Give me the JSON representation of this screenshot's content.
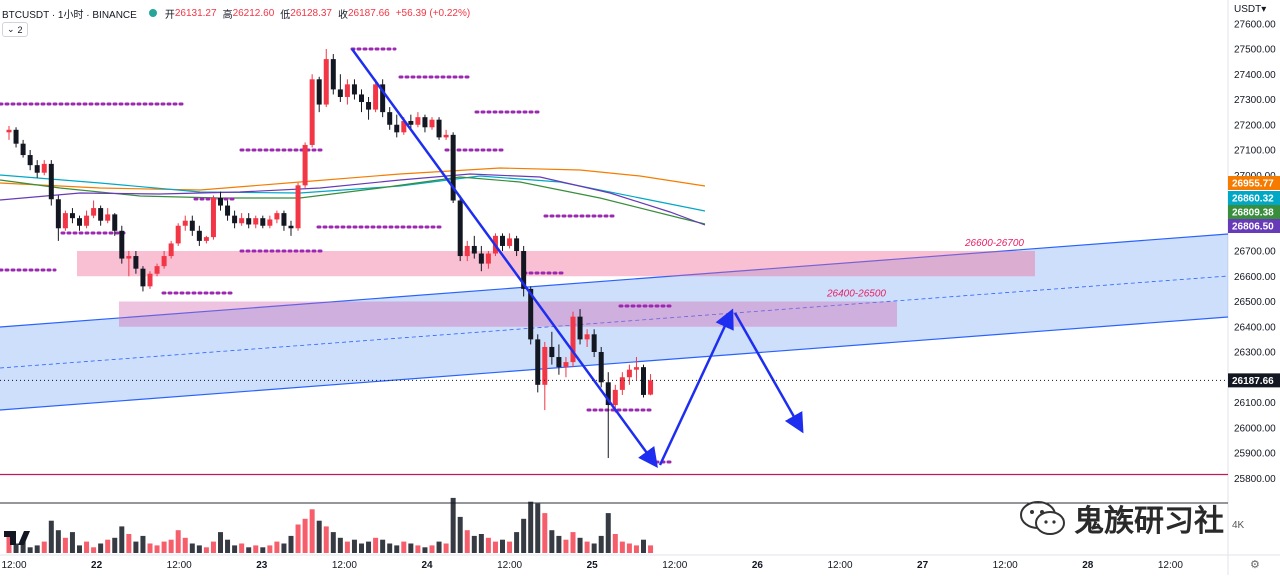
{
  "legend": {
    "symbol": "BTCUSDT · 1小时 · BINANCE",
    "open_label": "开",
    "open": "26131.27",
    "high_label": "高",
    "high": "26212.60",
    "low_label": "低",
    "low": "26128.37",
    "close_label": "收",
    "close": "26187.66",
    "change": "+56.39 (+0.22%)",
    "indicator_count": "2"
  },
  "currency": "USDT",
  "watermark": "鬼族研习社",
  "volume_unit": "4K",
  "colors": {
    "up": "#f23645",
    "down": "#131722",
    "accent_blue": "#1e2ef0",
    "zone_pink": "#f8a5c2",
    "level_purple": "#9c27b0"
  },
  "chart_data": {
    "type": "candlestick",
    "price_axis": {
      "ticks": [
        "27600.00",
        "27500.00",
        "27400.00",
        "27300.00",
        "27200.00",
        "27100.00",
        "27000.00",
        "26900.00",
        "26800.00",
        "26700.00",
        "26600.00",
        "26500.00",
        "26400.00",
        "26300.00",
        "26200.00",
        "26100.00",
        "26000.00",
        "25900.00",
        "25800.00"
      ],
      "range": [
        25780,
        27620
      ]
    },
    "time_axis": {
      "ticks": [
        "12:00",
        "22",
        "12:00",
        "23",
        "12:00",
        "24",
        "12:00",
        "25",
        "12:00",
        "26",
        "12:00",
        "27",
        "12:00",
        "28",
        "12:00"
      ]
    },
    "price_labels": [
      {
        "value": "26955.77",
        "color": "#f57c00"
      },
      {
        "value": "26860.32",
        "color": "#00a8c6"
      },
      {
        "value": "26809.38",
        "color": "#388e3c"
      },
      {
        "value": "26806.50",
        "color": "#673ab7"
      },
      {
        "value": "26187.66",
        "color": "#131722"
      }
    ],
    "last_price": 26187.66,
    "zones": [
      {
        "label": "26600-26700",
        "low": 26600,
        "high": 26700
      },
      {
        "label": "26400-26500",
        "low": 26400,
        "high": 26500
      }
    ],
    "support_line": 25815,
    "candles": [
      [
        27170,
        27195,
        27140,
        27180
      ],
      [
        27180,
        27190,
        27110,
        27125
      ],
      [
        27125,
        27140,
        27070,
        27080
      ],
      [
        27080,
        27100,
        27020,
        27040
      ],
      [
        27040,
        27060,
        26990,
        27010
      ],
      [
        27010,
        27060,
        27000,
        27045
      ],
      [
        27045,
        27060,
        26880,
        26905
      ],
      [
        26905,
        26920,
        26740,
        26790
      ],
      [
        26790,
        26860,
        26780,
        26850
      ],
      [
        26850,
        26870,
        26810,
        26830
      ],
      [
        26830,
        26840,
        26780,
        26800
      ],
      [
        26800,
        26860,
        26790,
        26840
      ],
      [
        26840,
        26900,
        26830,
        26870
      ],
      [
        26870,
        26880,
        26800,
        26820
      ],
      [
        26820,
        26870,
        26810,
        26845
      ],
      [
        26845,
        26850,
        26760,
        26780
      ],
      [
        26780,
        26800,
        26650,
        26670
      ],
      [
        26670,
        26700,
        26600,
        26680
      ],
      [
        26680,
        26700,
        26610,
        26630
      ],
      [
        26630,
        26640,
        26540,
        26560
      ],
      [
        26560,
        26620,
        26550,
        26610
      ],
      [
        26610,
        26650,
        26600,
        26640
      ],
      [
        26640,
        26700,
        26630,
        26680
      ],
      [
        26680,
        26740,
        26670,
        26730
      ],
      [
        26730,
        26810,
        26720,
        26800
      ],
      [
        26800,
        26840,
        26780,
        26820
      ],
      [
        26820,
        26840,
        26760,
        26780
      ],
      [
        26780,
        26800,
        26720,
        26740
      ],
      [
        26740,
        26760,
        26730,
        26755
      ],
      [
        26755,
        26920,
        26745,
        26910
      ],
      [
        26910,
        26935,
        26860,
        26880
      ],
      [
        26880,
        26900,
        26820,
        26840
      ],
      [
        26840,
        26860,
        26790,
        26810
      ],
      [
        26810,
        26850,
        26800,
        26830
      ],
      [
        26830,
        26850,
        26790,
        26805
      ],
      [
        26805,
        26840,
        26790,
        26830
      ],
      [
        26830,
        26840,
        26790,
        26800
      ],
      [
        26800,
        26840,
        26790,
        26825
      ],
      [
        26825,
        26860,
        26810,
        26850
      ],
      [
        26850,
        26860,
        26780,
        26800
      ],
      [
        26800,
        26820,
        26760,
        26790
      ],
      [
        26790,
        26970,
        26780,
        26960
      ],
      [
        26960,
        27130,
        26950,
        27120
      ],
      [
        27120,
        27400,
        27110,
        27380
      ],
      [
        27380,
        27390,
        27250,
        27280
      ],
      [
        27280,
        27500,
        27270,
        27460
      ],
      [
        27460,
        27480,
        27320,
        27340
      ],
      [
        27340,
        27400,
        27290,
        27310
      ],
      [
        27310,
        27380,
        27280,
        27360
      ],
      [
        27360,
        27380,
        27300,
        27320
      ],
      [
        27320,
        27340,
        27250,
        27290
      ],
      [
        27290,
        27310,
        27220,
        27260
      ],
      [
        27260,
        27380,
        27250,
        27360
      ],
      [
        27360,
        27380,
        27230,
        27250
      ],
      [
        27250,
        27270,
        27180,
        27200
      ],
      [
        27200,
        27240,
        27150,
        27170
      ],
      [
        27170,
        27230,
        27160,
        27215
      ],
      [
        27215,
        27240,
        27180,
        27200
      ],
      [
        27200,
        27250,
        27190,
        27230
      ],
      [
        27230,
        27240,
        27170,
        27190
      ],
      [
        27190,
        27230,
        27180,
        27220
      ],
      [
        27220,
        27230,
        27140,
        27150
      ],
      [
        27150,
        27180,
        27140,
        27160
      ],
      [
        27160,
        27170,
        26890,
        26900
      ],
      [
        26900,
        26920,
        26660,
        26680
      ],
      [
        26680,
        26740,
        26660,
        26720
      ],
      [
        26720,
        26760,
        26670,
        26690
      ],
      [
        26690,
        26720,
        26620,
        26650
      ],
      [
        26650,
        26700,
        26630,
        26690
      ],
      [
        26690,
        26770,
        26680,
        26760
      ],
      [
        26760,
        26770,
        26700,
        26720
      ],
      [
        26720,
        26770,
        26710,
        26750
      ],
      [
        26750,
        26760,
        26680,
        26700
      ],
      [
        26700,
        26720,
        26520,
        26550
      ],
      [
        26550,
        26560,
        26330,
        26350
      ],
      [
        26350,
        26370,
        26140,
        26170
      ],
      [
        26170,
        26340,
        26070,
        26320
      ],
      [
        26320,
        26380,
        26250,
        26280
      ],
      [
        26280,
        26330,
        26210,
        26240
      ],
      [
        26240,
        26280,
        26200,
        26260
      ],
      [
        26260,
        26460,
        26240,
        26440
      ],
      [
        26440,
        26470,
        26330,
        26350
      ],
      [
        26350,
        26390,
        26320,
        26370
      ],
      [
        26370,
        26390,
        26280,
        26300
      ],
      [
        26300,
        26320,
        26160,
        26180
      ],
      [
        26180,
        26220,
        25880,
        26090
      ],
      [
        26090,
        26170,
        26060,
        26150
      ],
      [
        26150,
        26220,
        26130,
        26200
      ],
      [
        26200,
        26250,
        26170,
        26230
      ],
      [
        26230,
        26280,
        26190,
        26240
      ],
      [
        26240,
        26250,
        26120,
        26130
      ],
      [
        26131.27,
        26212.6,
        26128.37,
        26187.66
      ]
    ],
    "volumes": [
      0.55,
      0.25,
      0.35,
      0.15,
      0.2,
      0.3,
      0.85,
      0.6,
      0.4,
      0.55,
      0.2,
      0.3,
      0.15,
      0.25,
      0.35,
      0.4,
      0.7,
      0.5,
      0.3,
      0.45,
      0.25,
      0.2,
      0.3,
      0.35,
      0.6,
      0.4,
      0.25,
      0.2,
      0.15,
      0.3,
      0.55,
      0.35,
      0.2,
      0.25,
      0.15,
      0.2,
      0.15,
      0.2,
      0.3,
      0.25,
      0.45,
      0.75,
      0.9,
      1.15,
      0.85,
      0.7,
      0.55,
      0.4,
      0.3,
      0.35,
      0.25,
      0.3,
      0.4,
      0.35,
      0.25,
      0.2,
      0.3,
      0.25,
      0.2,
      0.15,
      0.2,
      0.3,
      0.25,
      1.45,
      0.95,
      0.6,
      0.45,
      0.5,
      0.4,
      0.3,
      0.35,
      0.3,
      0.55,
      0.9,
      1.35,
      1.3,
      1.05,
      0.6,
      0.45,
      0.35,
      0.55,
      0.4,
      0.3,
      0.25,
      0.45,
      1.05,
      0.5,
      0.3,
      0.25,
      0.2,
      0.35,
      0.2
    ]
  }
}
